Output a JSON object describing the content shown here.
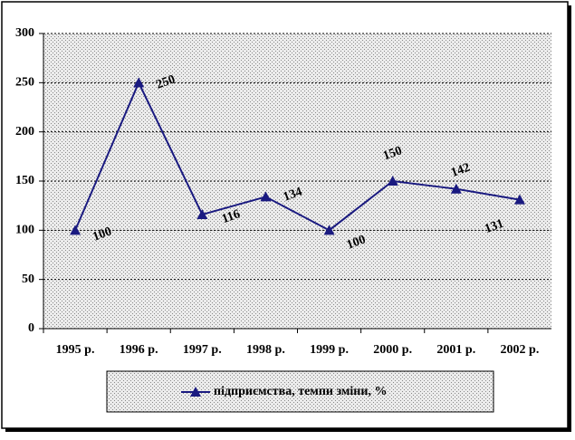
{
  "chart_data": {
    "type": "line",
    "categories": [
      "1995 р.",
      "1996 р.",
      "1997 р.",
      "1998 р.",
      "1999 р.",
      "2000 р.",
      "2001 р.",
      "2002 р."
    ],
    "series": [
      {
        "name": "підприємства, темпи зміни, %",
        "color": "#1a1a80",
        "values": [
          100,
          250,
          116,
          134,
          100,
          150,
          142,
          131
        ]
      }
    ],
    "ylim": [
      0,
      300
    ],
    "yticks": [
      0,
      50,
      100,
      150,
      200,
      250,
      300
    ],
    "grid": true,
    "data_labels": true,
    "legend": "bottom"
  }
}
